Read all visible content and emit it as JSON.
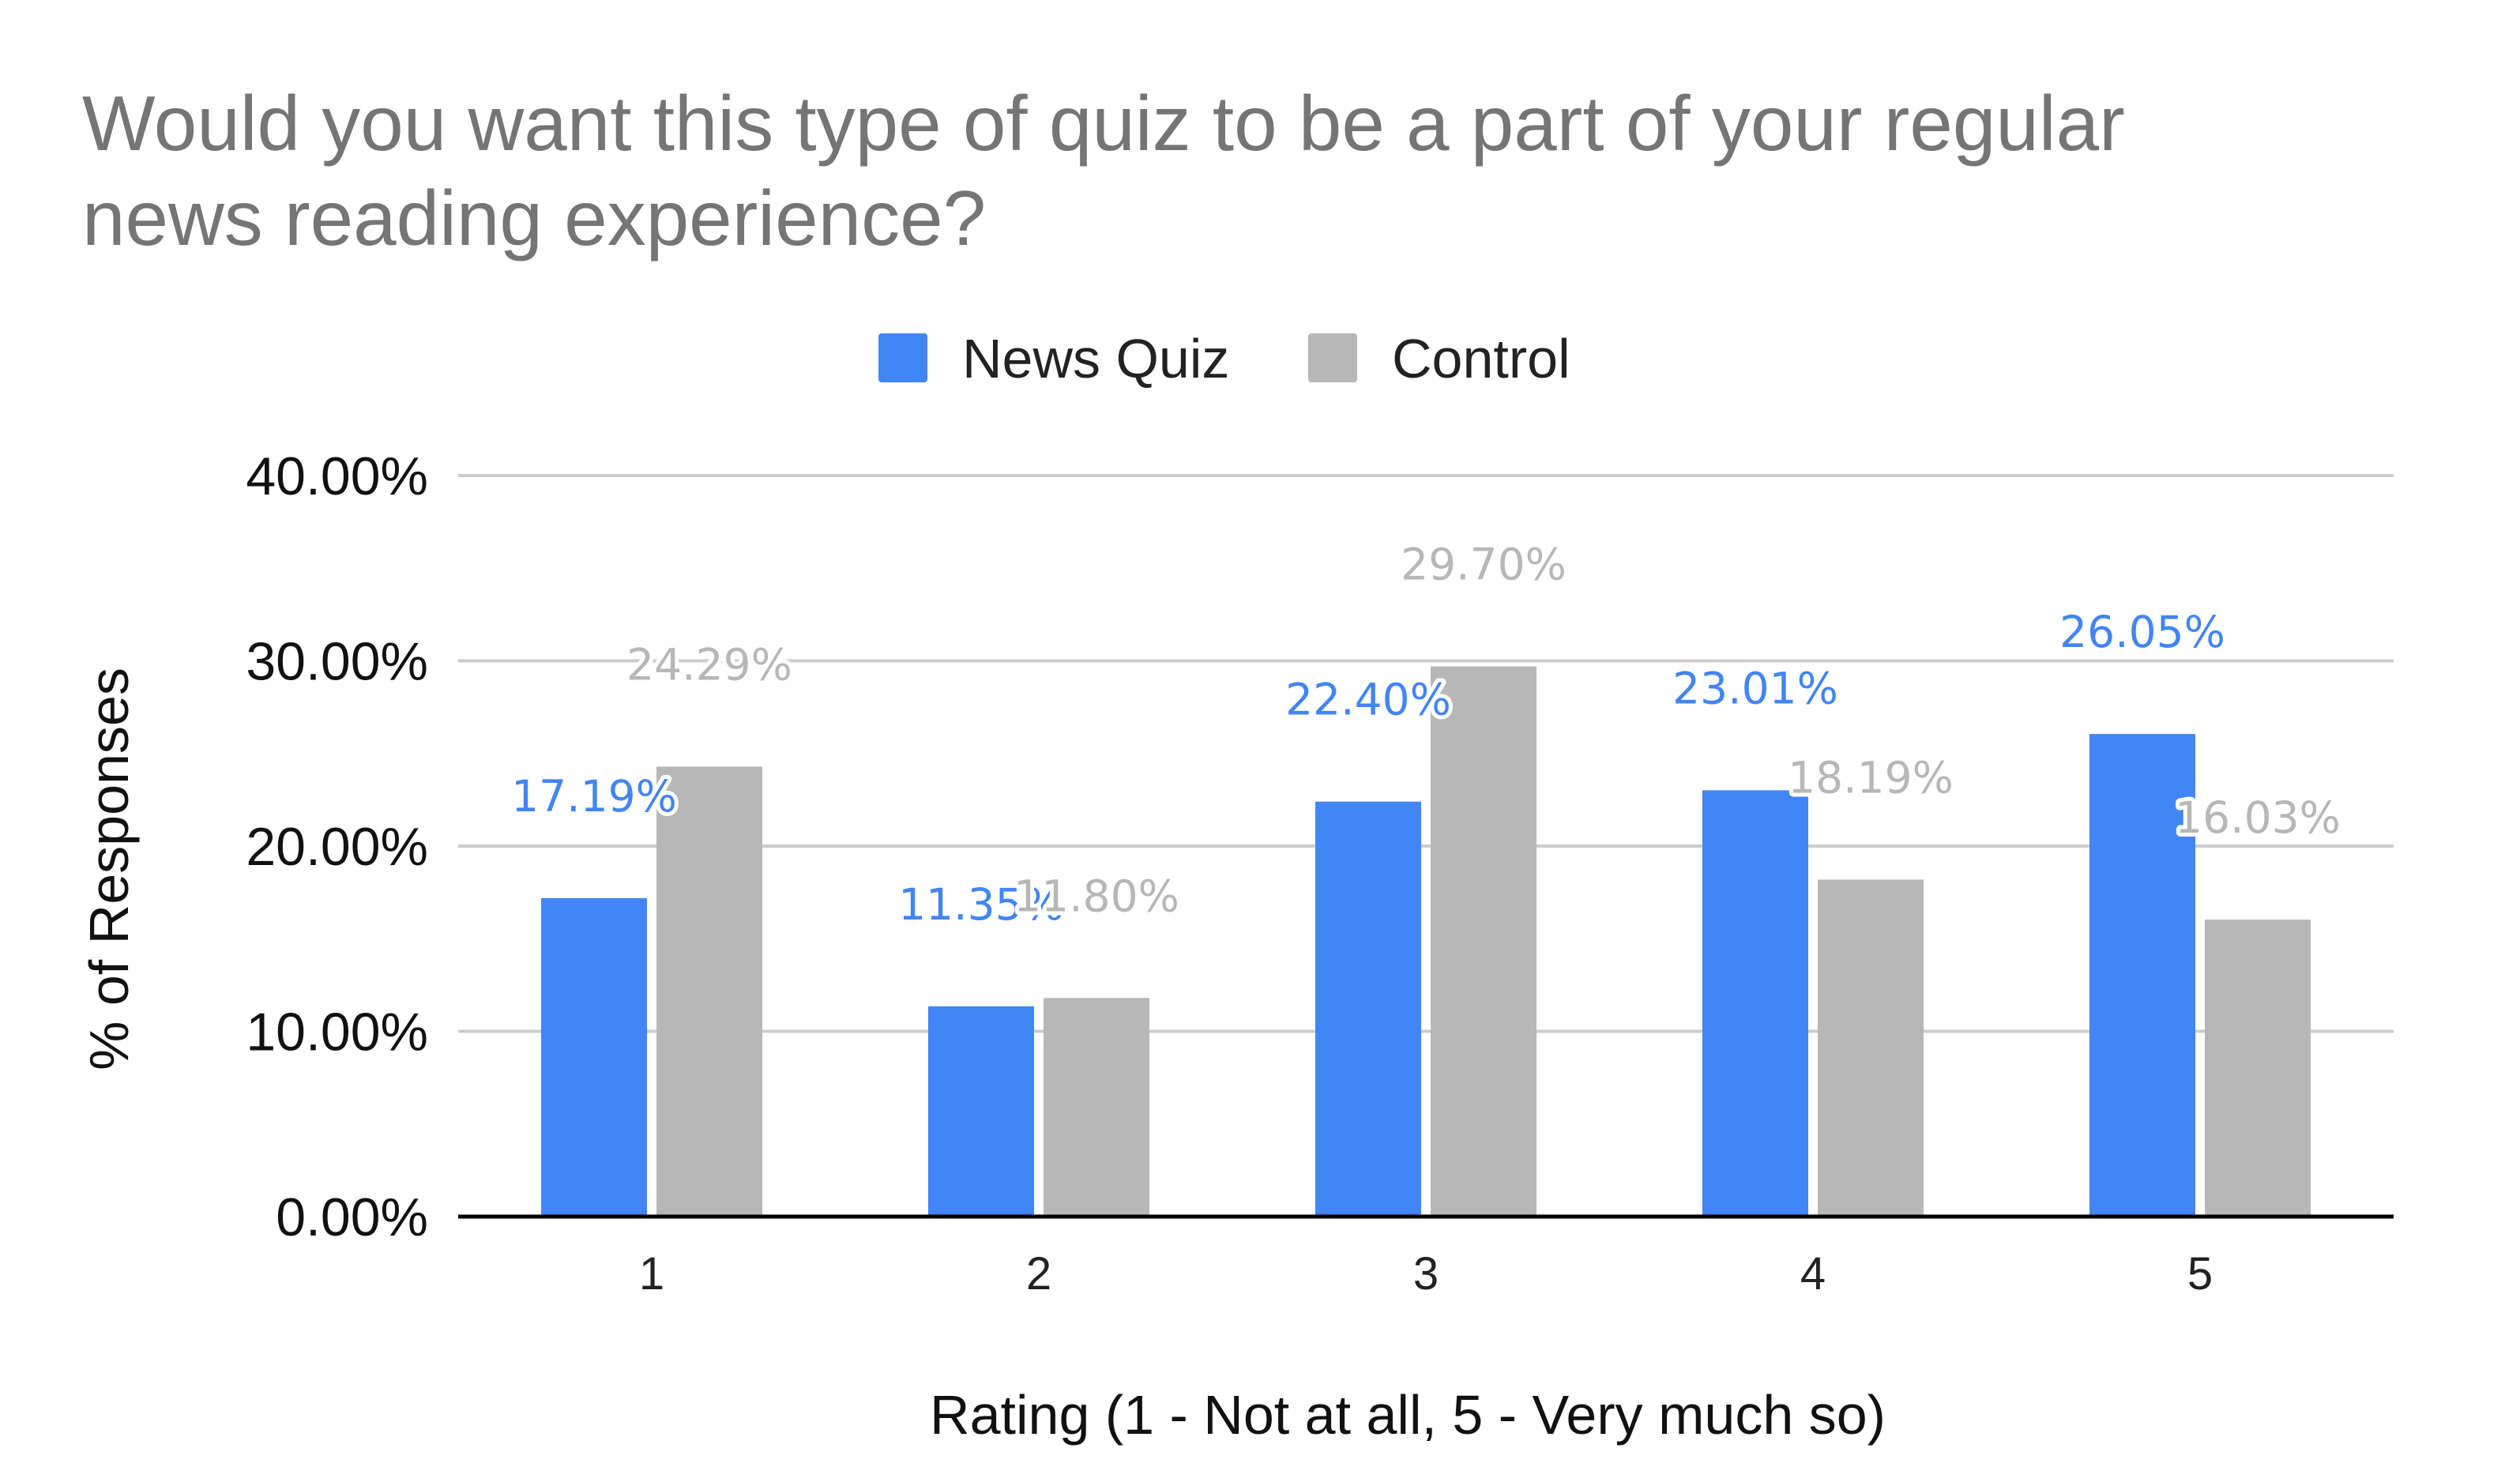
{
  "chart_data": {
    "type": "bar",
    "title_lines": [
      "Would you want this type of quiz to be a part of your regular",
      "news reading experience?"
    ],
    "xlabel": "Rating (1 - Not at all, 5 - Very much so)",
    "ylabel": "% of Responses",
    "categories": [
      "1",
      "2",
      "3",
      "4",
      "5"
    ],
    "ylim": [
      0,
      40
    ],
    "yticks": [
      0,
      10,
      20,
      30,
      40
    ],
    "ytick_labels": [
      "0.00%",
      "10.00%",
      "20.00%",
      "30.00%",
      "40.00%"
    ],
    "grid": true,
    "legend_position": "top-center",
    "series": [
      {
        "name": "News Quiz",
        "color": "#4285F4",
        "values": [
          17.19,
          11.35,
          22.4,
          23.01,
          26.05
        ],
        "labels": [
          "17.19%",
          "11.35%",
          "22.40%",
          "23.01%",
          "26.05%"
        ]
      },
      {
        "name": "Control",
        "color": "#B7B7B7",
        "values": [
          24.29,
          11.8,
          29.7,
          18.19,
          16.03
        ],
        "labels": [
          "24.29%",
          "11.80%",
          "29.70%",
          "18.19%",
          "16.03%"
        ]
      }
    ],
    "colors": {
      "gridline": "#CCCCCC",
      "baseline": "#000000",
      "title": "#757575",
      "news_quiz_label": "#4285F4",
      "control_label": "#B7B7B7"
    }
  }
}
